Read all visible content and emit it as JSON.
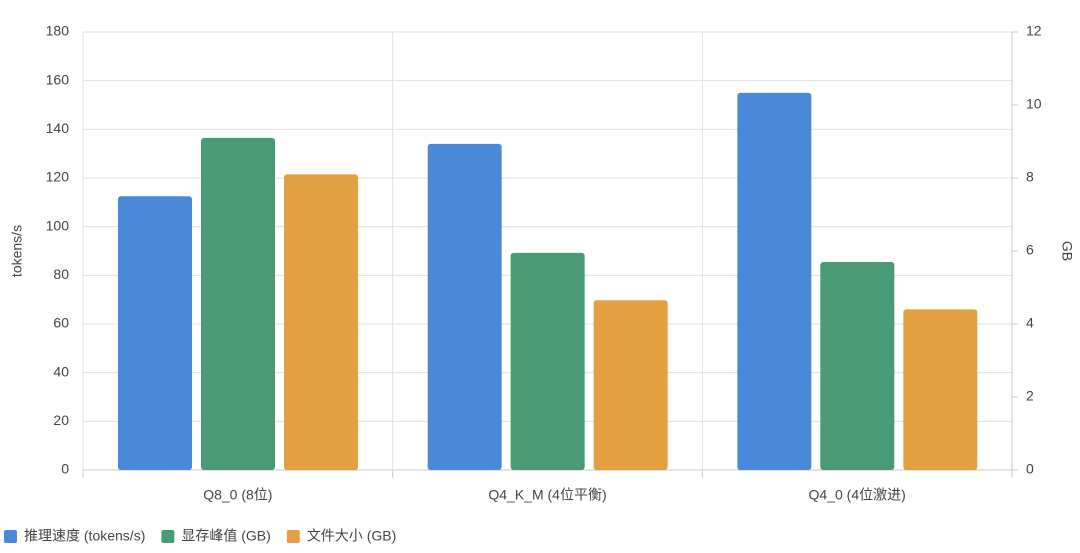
{
  "chart_data": {
    "type": "bar",
    "y_label": "tokens/s",
    "y2_label": "GB",
    "categories": [
      "Q8_0 (8位)",
      "Q4_K_M (4位平衡)",
      "Q4_0 (4位激进)"
    ],
    "series": [
      {
        "name": "推理速度 (tokens/s)",
        "color": "#4a88d9",
        "values": [
          112.5,
          134,
          155
        ]
      },
      {
        "name": "显存峰值 (GB)",
        "color": "#4a9a75",
        "axis": "y2",
        "values": [
          9.1,
          5.95,
          5.7
        ]
      },
      {
        "name": "文件大小 (GB)",
        "color": "#e2a042",
        "axis": "y2",
        "values": [
          8.1,
          4.65,
          4.4
        ]
      }
    ],
    "ylim": [
      0,
      180
    ],
    "yticks": [
      0,
      20,
      40,
      60,
      80,
      100,
      120,
      140,
      160,
      180
    ],
    "y2lim": [
      0,
      12
    ],
    "y2ticks": [
      0,
      2,
      4,
      6,
      8,
      10,
      12
    ],
    "grid": true,
    "legend": "bottom-left"
  }
}
